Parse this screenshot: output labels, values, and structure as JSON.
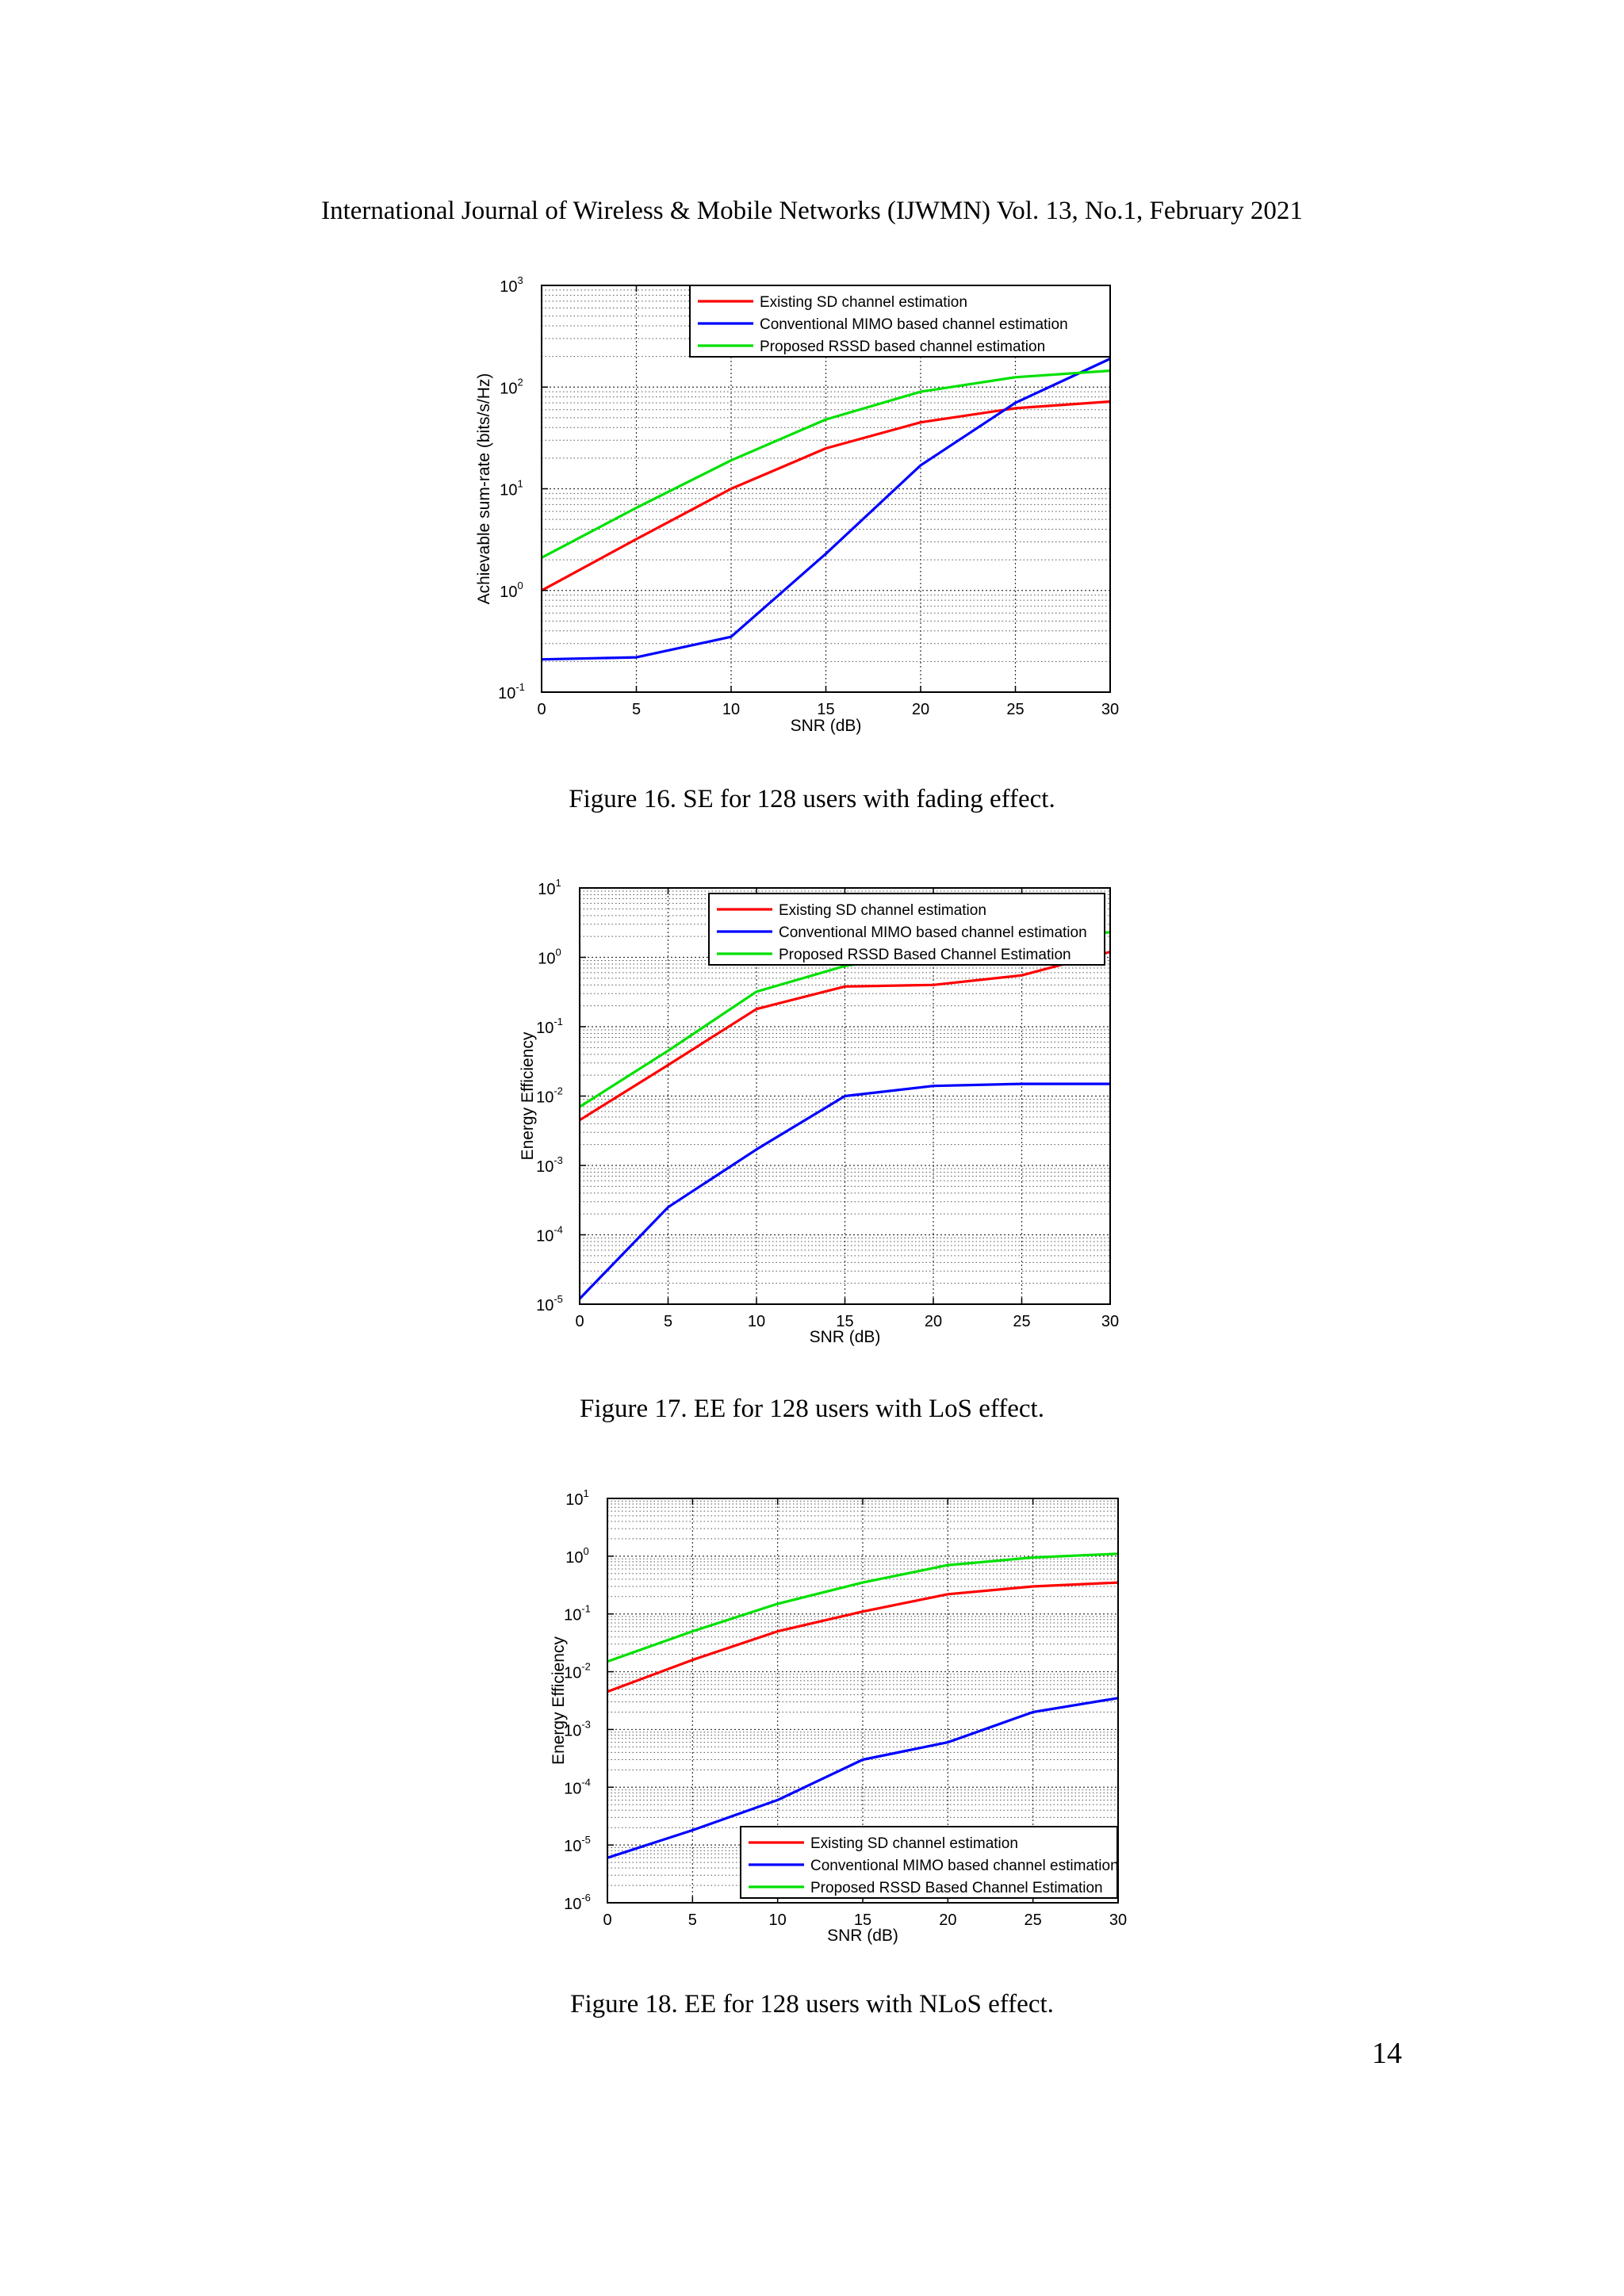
{
  "header": "International Journal of Wireless & Mobile Networks (IJWMN) Vol. 13, No.1, February 2021",
  "page_number": "14",
  "figures": [
    {
      "caption": "Figure 16.   SE for 128 users with fading effect.",
      "ylabel": "Achievable sum-rate (bits/s/Hz)",
      "xlabel": "SNR (dB)"
    },
    {
      "caption": "Figure 17.  EE for 128 users with LoS effect.",
      "ylabel": "Energy Efficiency",
      "xlabel": "SNR (dB)"
    },
    {
      "caption": "Figure 18.  EE for 128 users with NLoS effect.",
      "ylabel": "Energy Efficiency",
      "xlabel": "SNR (dB)"
    }
  ],
  "chart_data": [
    {
      "type": "line",
      "xlabel": "SNR (dB)",
      "ylabel": "Achievable sum-rate (bits/s/Hz)",
      "xlim": [
        0,
        30
      ],
      "xticks": [
        0,
        5,
        10,
        15,
        20,
        25,
        30
      ],
      "ylim": [
        0.1,
        1000
      ],
      "yscale": "log",
      "yticks": [
        {
          "value": 0.1,
          "base": "10",
          "exp": "-1"
        },
        {
          "value": 1,
          "base": "10",
          "exp": "0"
        },
        {
          "value": 10,
          "base": "10",
          "exp": "1"
        },
        {
          "value": 100,
          "base": "10",
          "exp": "2"
        },
        {
          "value": 1000,
          "base": "10",
          "exp": "3"
        }
      ],
      "grid": true,
      "legend": "top-right",
      "x": [
        0,
        5,
        10,
        15,
        20,
        25,
        30
      ],
      "series": [
        {
          "name": "Existing SD channel estimation",
          "color": "#ff0000",
          "values": [
            1.0,
            3.2,
            10,
            25,
            45,
            62,
            72
          ]
        },
        {
          "name": "Conventional MIMO based channel estimation",
          "color": "#0000ff",
          "values": [
            0.21,
            0.22,
            0.35,
            2.3,
            17,
            70,
            190
          ]
        },
        {
          "name": "Proposed RSSD based channel estimation",
          "color": "#00e000",
          "values": [
            2.1,
            6.5,
            19,
            48,
            90,
            125,
            145
          ]
        }
      ]
    },
    {
      "type": "line",
      "xlabel": "SNR (dB)",
      "ylabel": "Energy Efficiency",
      "xlim": [
        0,
        30
      ],
      "xticks": [
        0,
        5,
        10,
        15,
        20,
        25,
        30
      ],
      "ylim": [
        1e-05,
        10
      ],
      "yscale": "log",
      "yticks": [
        {
          "value": 1e-05,
          "base": "10",
          "exp": "-5"
        },
        {
          "value": 0.0001,
          "base": "10",
          "exp": "-4"
        },
        {
          "value": 0.001,
          "base": "10",
          "exp": "-3"
        },
        {
          "value": 0.01,
          "base": "10",
          "exp": "-2"
        },
        {
          "value": 0.1,
          "base": "10",
          "exp": "-1"
        },
        {
          "value": 1,
          "base": "10",
          "exp": "0"
        },
        {
          "value": 10,
          "base": "10",
          "exp": "1"
        }
      ],
      "grid": true,
      "legend": "top-right",
      "x": [
        0,
        5,
        10,
        15,
        20,
        25,
        30
      ],
      "series": [
        {
          "name": "Existing SD channel estimation",
          "color": "#ff0000",
          "values": [
            0.0045,
            0.028,
            0.18,
            0.38,
            0.4,
            0.55,
            1.2
          ]
        },
        {
          "name": "Conventional MIMO based channel estimation",
          "color": "#0000ff",
          "values": [
            1.2e-05,
            0.00025,
            0.0017,
            0.01,
            0.014,
            0.015,
            0.015
          ]
        },
        {
          "name": "Proposed RSSD Based Channel Estimation",
          "color": "#00e000",
          "values": [
            0.007,
            0.045,
            0.32,
            0.75,
            1.2,
            1.8,
            2.3
          ]
        }
      ]
    },
    {
      "type": "line",
      "xlabel": "SNR (dB)",
      "ylabel": "Energy Efficiency",
      "xlim": [
        0,
        30
      ],
      "xticks": [
        0,
        5,
        10,
        15,
        20,
        25,
        30
      ],
      "ylim": [
        1e-06,
        10
      ],
      "yscale": "log",
      "yticks": [
        {
          "value": 1e-06,
          "base": "10",
          "exp": "-6"
        },
        {
          "value": 1e-05,
          "base": "10",
          "exp": "-5"
        },
        {
          "value": 0.0001,
          "base": "10",
          "exp": "-4"
        },
        {
          "value": 0.001,
          "base": "10",
          "exp": "-3"
        },
        {
          "value": 0.01,
          "base": "10",
          "exp": "-2"
        },
        {
          "value": 0.1,
          "base": "10",
          "exp": "-1"
        },
        {
          "value": 1,
          "base": "10",
          "exp": "0"
        },
        {
          "value": 10,
          "base": "10",
          "exp": "1"
        }
      ],
      "grid": true,
      "legend": "bottom-right",
      "x": [
        0,
        5,
        10,
        15,
        20,
        25,
        30
      ],
      "series": [
        {
          "name": "Existing SD channel estimation",
          "color": "#ff0000",
          "values": [
            0.0045,
            0.016,
            0.05,
            0.11,
            0.22,
            0.3,
            0.35
          ]
        },
        {
          "name": "Conventional MIMO based channel estimation",
          "color": "#0000ff",
          "values": [
            6e-06,
            1.8e-05,
            6e-05,
            0.0003,
            0.0006,
            0.002,
            0.0035
          ]
        },
        {
          "name": "Proposed RSSD Based Channel Estimation",
          "color": "#00e000",
          "values": [
            0.015,
            0.05,
            0.15,
            0.35,
            0.7,
            0.95,
            1.1
          ]
        }
      ]
    }
  ]
}
